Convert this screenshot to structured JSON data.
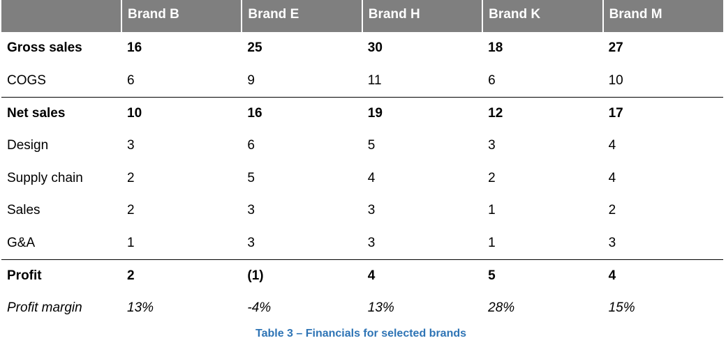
{
  "table": {
    "headers": [
      "Brand B",
      "Brand E",
      "Brand H",
      "Brand K",
      "Brand M"
    ],
    "rows": [
      {
        "label": "Gross sales",
        "values": [
          "16",
          "25",
          "30",
          "18",
          "27"
        ],
        "style": "bold"
      },
      {
        "label": "COGS",
        "values": [
          "6",
          "9",
          "11",
          "6",
          "10"
        ],
        "style": "normal"
      },
      {
        "label": "Net sales",
        "values": [
          "10",
          "16",
          "19",
          "12",
          "17"
        ],
        "style": "bold",
        "rule_above": true
      },
      {
        "label": "Design",
        "values": [
          "3",
          "6",
          "5",
          "3",
          "4"
        ],
        "style": "normal"
      },
      {
        "label": "Supply chain",
        "values": [
          "2",
          "5",
          "4",
          "2",
          "4"
        ],
        "style": "normal"
      },
      {
        "label": "Sales",
        "values": [
          "2",
          "3",
          "3",
          "1",
          "2"
        ],
        "style": "normal"
      },
      {
        "label": "G&A",
        "values": [
          "1",
          "3",
          "3",
          "1",
          "3"
        ],
        "style": "normal"
      },
      {
        "label": "Profit",
        "values": [
          "2",
          "(1)",
          "4",
          "5",
          "4"
        ],
        "style": "bold",
        "rule_above": true
      },
      {
        "label": "Profit margin",
        "values": [
          "13%",
          "-4%",
          "13%",
          "28%",
          "15%"
        ],
        "style": "italic"
      }
    ]
  },
  "caption": "Table 3 – Financials for selected brands",
  "colors": {
    "header_bg": "#7f7f7f",
    "header_text": "#ffffff",
    "caption": "#2e74b5"
  }
}
